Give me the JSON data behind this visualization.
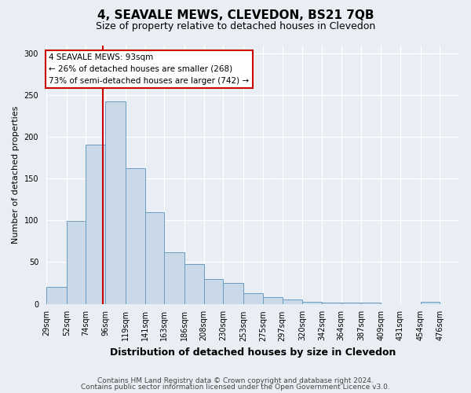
{
  "title": "4, SEAVALE MEWS, CLEVEDON, BS21 7QB",
  "subtitle": "Size of property relative to detached houses in Clevedon",
  "xlabel": "Distribution of detached houses by size in Clevedon",
  "ylabel": "Number of detached properties",
  "bin_labels": [
    "29sqm",
    "52sqm",
    "74sqm",
    "96sqm",
    "119sqm",
    "141sqm",
    "163sqm",
    "186sqm",
    "208sqm",
    "230sqm",
    "253sqm",
    "275sqm",
    "297sqm",
    "320sqm",
    "342sqm",
    "364sqm",
    "387sqm",
    "409sqm",
    "431sqm",
    "454sqm",
    "476sqm"
  ],
  "bin_edges": [
    29,
    52,
    74,
    96,
    119,
    141,
    163,
    186,
    208,
    230,
    253,
    275,
    297,
    320,
    342,
    364,
    387,
    409,
    431,
    454,
    476
  ],
  "bar_heights": [
    20,
    99,
    191,
    243,
    163,
    110,
    62,
    48,
    30,
    25,
    13,
    8,
    5,
    2,
    1,
    1,
    1,
    0,
    0,
    2
  ],
  "bar_face_color": "#c9d9e8",
  "bar_edge_color": "#6b9dc2",
  "property_line_x": 93,
  "property_line_color": "#cc0000",
  "annotation_title": "4 SEAVALE MEWS: 93sqm",
  "annotation_line1": "← 26% of detached houses are smaller (268)",
  "annotation_line2": "73% of semi-detached houses are larger (742) →",
  "annotation_box_facecolor": "#ffffff",
  "annotation_box_edgecolor": "#cc0000",
  "ylim": [
    0,
    310
  ],
  "yticks": [
    0,
    50,
    100,
    150,
    200,
    250,
    300
  ],
  "footer1": "Contains HM Land Registry data © Crown copyright and database right 2024.",
  "footer2": "Contains public sector information licensed under the Open Government Licence v3.0.",
  "fig_facecolor": "#e8eef4",
  "plot_facecolor": "#e8eef4",
  "grid_color": "#ffffff",
  "title_fontsize": 11,
  "subtitle_fontsize": 9,
  "xlabel_fontsize": 9,
  "ylabel_fontsize": 8,
  "tick_fontsize": 7,
  "footer_fontsize": 6.5
}
